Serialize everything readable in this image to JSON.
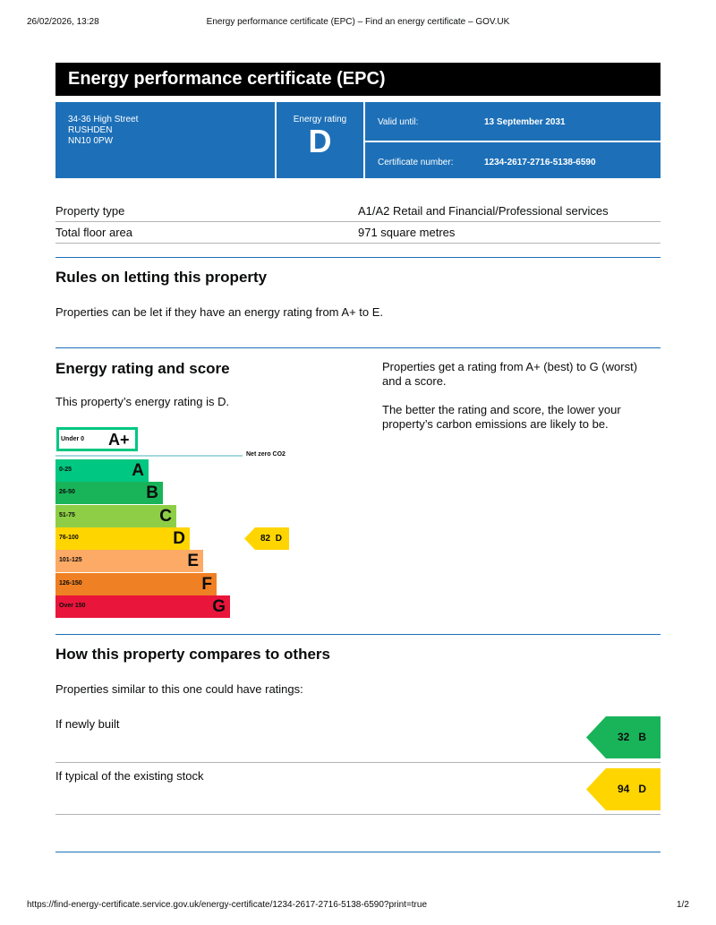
{
  "print_header": {
    "date": "26/02/2026, 13:28",
    "title": "Energy performance certificate (EPC) – Find an energy certificate – GOV.UK"
  },
  "title": "Energy performance certificate (EPC)",
  "summary": {
    "address": [
      "34-36 High Street",
      "RUSHDEN",
      "NN10 0PW"
    ],
    "rating_label": "Energy rating",
    "rating": "D",
    "valid_label": "Valid until:",
    "valid_value": "13 September 2031",
    "cert_label": "Certificate number:",
    "cert_value": "1234-2617-2716-5138-6590"
  },
  "details": [
    {
      "label": "Property type",
      "value": "A1/A2 Retail and Financial/Professional services"
    },
    {
      "label": "Total floor area",
      "value": "971 square metres"
    }
  ],
  "rules": {
    "heading": "Rules on letting this property",
    "text": "Properties can be let if they have an energy rating from A+ to E."
  },
  "rating_section": {
    "heading": "Energy rating and score",
    "text": "This property’s energy rating is D.",
    "side1": "Properties get a rating from A+ (best) to G (worst) and a score.",
    "side2": "The better the rating and score, the lower your property’s carbon emissions are likely to be.",
    "aplus": {
      "range": "Under 0",
      "letter": "A+",
      "color": "#00c781"
    },
    "net_zero": "Net zero CO2",
    "bands": [
      {
        "range": "0-25",
        "letter": "A",
        "color": "#00c781"
      },
      {
        "range": "26-50",
        "letter": "B",
        "color": "#19b459"
      },
      {
        "range": "51-75",
        "letter": "C",
        "color": "#8dce46"
      },
      {
        "range": "76-100",
        "letter": "D",
        "color": "#ffd500"
      },
      {
        "range": "101-125",
        "letter": "E",
        "color": "#fcaa65"
      },
      {
        "range": "126-150",
        "letter": "F",
        "color": "#ef8023"
      },
      {
        "range": "Over 150",
        "letter": "G",
        "color": "#e9153b"
      }
    ],
    "current": {
      "score": "82",
      "letter": "D",
      "color": "#ffd500"
    }
  },
  "compare": {
    "heading": "How this property compares to others",
    "intro": "Properties similar to this one could have ratings:",
    "items": [
      {
        "label": "If newly built",
        "score": "32",
        "letter": "B",
        "color": "#19b459"
      },
      {
        "label": "If typical of the existing stock",
        "score": "94",
        "letter": "D",
        "color": "#ffd500"
      }
    ]
  },
  "footer": {
    "url": "https://find-energy-certificate.service.gov.uk/energy-certificate/1234-2617-2716-5138-6590?print=true",
    "page": "1/2"
  }
}
